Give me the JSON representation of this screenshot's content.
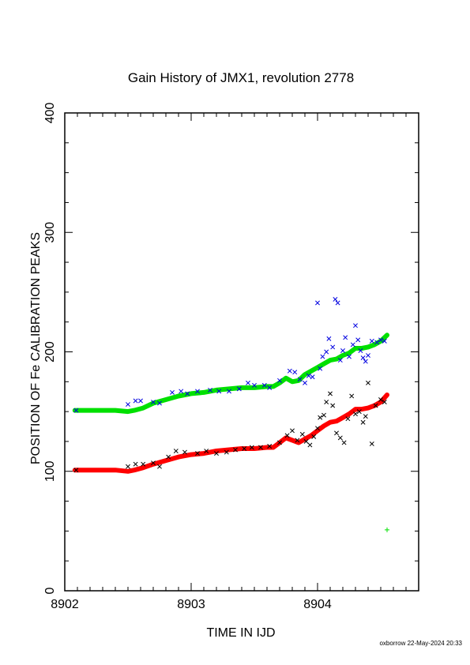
{
  "chart_data": {
    "type": "scatter",
    "title": "Gain History of JMX1, revolution 2778",
    "xlabel": "TIME IN IJD",
    "ylabel": "POSITION OF Fe CALIBRATION PEAKS",
    "xlim": [
      8902.0,
      8904.8
    ],
    "ylim": [
      0,
      400
    ],
    "xticks": [
      "8902",
      "8903",
      "8904"
    ],
    "yticks": [
      "0",
      "100",
      "200",
      "300",
      "400"
    ],
    "grid": false,
    "series": [
      {
        "color": "#00e000",
        "style": "thick-line",
        "x": [
          8902.08,
          8902.2,
          8902.3,
          8902.4,
          8902.5,
          8902.55,
          8902.62,
          8902.7,
          8902.8,
          8902.9,
          8903.0,
          8903.1,
          8903.2,
          8903.3,
          8903.4,
          8903.5,
          8903.6,
          8903.65,
          8903.7,
          8903.75,
          8903.8,
          8903.85,
          8903.9,
          8903.95,
          8904.0,
          8904.05,
          8904.1,
          8904.15,
          8904.2,
          8904.25,
          8904.3,
          8904.35,
          8904.4,
          8904.45,
          8904.5,
          8904.55
        ],
        "y": [
          151,
          151,
          151,
          151,
          150,
          151,
          153,
          157,
          160,
          163,
          165,
          166,
          168,
          169,
          170,
          170,
          171,
          171,
          174,
          178,
          175,
          176,
          181,
          184,
          187,
          190,
          193,
          194,
          197,
          199,
          203,
          203,
          204,
          206,
          209,
          214
        ]
      },
      {
        "color": "#ff0000",
        "style": "thick-line",
        "x": [
          8902.08,
          8902.2,
          8902.3,
          8902.4,
          8902.5,
          8902.55,
          8902.62,
          8902.7,
          8902.8,
          8902.9,
          8903.0,
          8903.1,
          8903.2,
          8903.3,
          8903.4,
          8903.5,
          8903.6,
          8903.65,
          8903.7,
          8903.75,
          8903.8,
          8903.85,
          8903.9,
          8903.95,
          8904.0,
          8904.05,
          8904.1,
          8904.15,
          8904.2,
          8904.25,
          8904.3,
          8904.35,
          8904.4,
          8904.45,
          8904.5,
          8904.55
        ],
        "y": [
          101,
          101,
          101,
          101,
          100,
          101,
          103,
          106,
          109,
          112,
          114,
          115,
          117,
          118,
          119,
          119,
          120,
          120,
          124,
          128,
          126,
          124,
          127,
          130,
          134,
          138,
          141,
          142,
          145,
          148,
          152,
          152,
          153,
          155,
          158,
          164
        ]
      },
      {
        "color": "#0000e0",
        "style": "x-marker",
        "x": [
          8902.09,
          8902.5,
          8902.56,
          8902.6,
          8902.7,
          8902.75,
          8902.85,
          8902.92,
          8902.97,
          8903.05,
          8903.15,
          8903.22,
          8903.3,
          8903.38,
          8903.45,
          8903.5,
          8903.58,
          8903.62,
          8903.7,
          8903.78,
          8903.82,
          8903.86,
          8903.9,
          8903.93,
          8903.96,
          8904.0,
          8904.02,
          8904.04,
          8904.07,
          8904.09,
          8904.12,
          8904.14,
          8904.16,
          8904.18,
          8904.2,
          8904.22,
          8904.25,
          8904.28,
          8904.3,
          8904.32,
          8904.34,
          8904.36,
          8904.38,
          8904.4,
          8904.43,
          8904.47,
          8904.5,
          8904.53
        ],
        "y": [
          151,
          156,
          159,
          159,
          158,
          157,
          166,
          167,
          165,
          167,
          168,
          167,
          167,
          169,
          174,
          172,
          172,
          170,
          176,
          184,
          183,
          177,
          174,
          180,
          179,
          241,
          186,
          196,
          200,
          211,
          204,
          244,
          241,
          193,
          201,
          212,
          196,
          206,
          222,
          210,
          201,
          195,
          192,
          197,
          209,
          208,
          210,
          209
        ]
      },
      {
        "color": "#000000",
        "style": "x-marker",
        "x": [
          8902.09,
          8902.5,
          8902.56,
          8902.62,
          8902.7,
          8902.75,
          8902.82,
          8902.88,
          8902.95,
          8903.05,
          8903.12,
          8903.2,
          8903.28,
          8903.35,
          8903.42,
          8903.48,
          8903.55,
          8903.62,
          8903.7,
          8903.76,
          8903.8,
          8903.84,
          8903.88,
          8903.91,
          8903.94,
          8903.97,
          8904.0,
          8904.02,
          8904.05,
          8904.07,
          8904.1,
          8904.12,
          8904.15,
          8904.18,
          8904.21,
          8904.24,
          8904.27,
          8904.3,
          8904.33,
          8904.36,
          8904.38,
          8904.4,
          8904.43,
          8904.46,
          8904.5,
          8904.53
        ],
        "y": [
          101,
          104,
          106,
          106,
          107,
          104,
          112,
          117,
          116,
          115,
          117,
          115,
          116,
          118,
          119,
          120,
          120,
          121,
          124,
          130,
          134,
          126,
          131,
          125,
          122,
          129,
          136,
          145,
          147,
          158,
          165,
          155,
          132,
          128,
          124,
          144,
          163,
          148,
          150,
          141,
          146,
          174,
          123,
          155,
          160,
          158
        ]
      },
      {
        "color": "#00e000",
        "style": "plus-marker",
        "x": [
          8904.55
        ],
        "y": [
          51
        ]
      }
    ]
  },
  "footer": {
    "credit": "oxborrow 22-May-2024 20:33"
  }
}
